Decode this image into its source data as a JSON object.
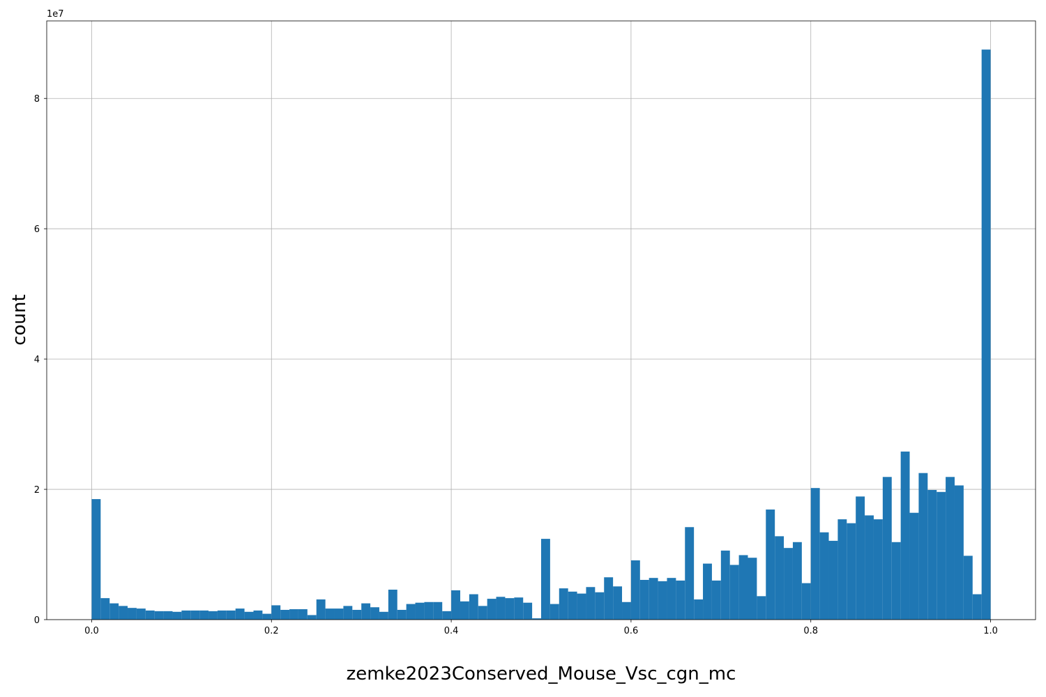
{
  "chart_data": {
    "type": "histogram",
    "xlabel": "zemke2023Conserved_Mouse_Vsc_cgn_mc",
    "ylabel": "count",
    "y_offset_label": "1e7",
    "color": "#1f77b4",
    "grid": true,
    "xlim": [
      -0.05,
      1.05
    ],
    "ylim": [
      0,
      9.19
    ],
    "xticks": [
      {
        "value": 0,
        "label": "0.0"
      },
      0.2,
      0.4,
      0.6,
      0.8,
      {
        "value": 1,
        "label": "1.0"
      }
    ],
    "yticks": [
      0,
      2,
      4,
      6,
      8
    ],
    "bins": [
      0,
      0.01,
      0.02,
      0.03,
      0.04,
      0.05,
      0.06,
      0.07,
      0.08,
      0.09,
      0.1,
      0.11,
      0.12,
      0.13,
      0.14,
      0.15,
      0.16,
      0.17,
      0.18,
      0.19,
      0.2,
      0.21,
      0.22,
      0.23,
      0.24,
      0.25,
      0.26,
      0.27,
      0.28,
      0.29,
      0.3,
      0.31,
      0.32,
      0.33,
      0.34,
      0.35,
      0.36,
      0.37,
      0.38,
      0.39,
      0.4,
      0.41,
      0.42,
      0.43,
      0.44,
      0.45,
      0.46,
      0.47,
      0.48,
      0.49,
      0.5,
      0.51,
      0.52,
      0.53,
      0.54,
      0.55,
      0.56,
      0.57,
      0.58,
      0.59,
      0.6,
      0.61,
      0.62,
      0.63,
      0.64,
      0.65,
      0.66,
      0.67,
      0.68,
      0.69,
      0.7,
      0.71,
      0.72,
      0.73,
      0.74,
      0.75,
      0.76,
      0.77,
      0.78,
      0.79,
      0.8,
      0.81,
      0.82,
      0.83,
      0.84,
      0.85,
      0.86,
      0.87,
      0.88,
      0.89,
      0.9,
      0.91,
      0.92,
      0.93,
      0.94,
      0.95,
      0.96,
      0.97,
      0.98,
      0.99,
      1
    ],
    "values": [
      1.85,
      0.33,
      0.25,
      0.21,
      0.18,
      0.17,
      0.14,
      0.13,
      0.13,
      0.12,
      0.14,
      0.14,
      0.14,
      0.13,
      0.14,
      0.14,
      0.17,
      0.12,
      0.14,
      0.09,
      0.22,
      0.15,
      0.16,
      0.16,
      0.07,
      0.31,
      0.17,
      0.17,
      0.21,
      0.15,
      0.25,
      0.19,
      0.12,
      0.46,
      0.15,
      0.24,
      0.26,
      0.27,
      0.27,
      0.13,
      0.45,
      0.28,
      0.39,
      0.21,
      0.32,
      0.35,
      0.33,
      0.34,
      0.26,
      0.02,
      1.24,
      0.24,
      0.48,
      0.43,
      0.4,
      0.5,
      0.42,
      0.65,
      0.51,
      0.27,
      0.91,
      0.61,
      0.64,
      0.59,
      0.64,
      0.6,
      1.42,
      0.31,
      0.86,
      0.6,
      1.06,
      0.84,
      0.99,
      0.95,
      0.36,
      1.69,
      1.28,
      1.1,
      1.19,
      0.56,
      2.02,
      1.34,
      1.21,
      1.54,
      1.48,
      1.89,
      1.6,
      1.54,
      2.19,
      1.19,
      2.58,
      1.64,
      2.25,
      1.99,
      1.96,
      2.19,
      2.06,
      0.98,
      0.39,
      8.75
    ]
  }
}
